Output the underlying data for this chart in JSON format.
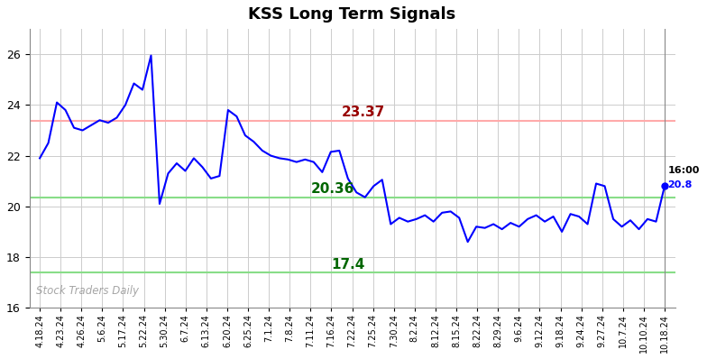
{
  "title": "KSS Long Term Signals",
  "x_labels": [
    "4.18.24",
    "4.23.24",
    "4.26.24",
    "5.6.24",
    "5.17.24",
    "5.22.24",
    "5.30.24",
    "6.7.24",
    "6.13.24",
    "6.20.24",
    "6.25.24",
    "7.1.24",
    "7.8.24",
    "7.11.24",
    "7.16.24",
    "7.22.24",
    "7.25.24",
    "7.30.24",
    "8.2.24",
    "8.12.24",
    "8.15.24",
    "8.22.24",
    "8.29.24",
    "9.6.24",
    "9.12.24",
    "9.18.24",
    "9.24.24",
    "9.27.24",
    "10.7.24",
    "10.10.24",
    "10.18.24"
  ],
  "y_values": [
    21.9,
    22.5,
    24.1,
    23.8,
    23.1,
    23.0,
    23.2,
    23.4,
    23.3,
    23.5,
    24.0,
    24.85,
    24.6,
    25.95,
    20.1,
    21.3,
    21.7,
    21.4,
    21.9,
    21.55,
    21.1,
    21.2,
    23.8,
    23.55,
    22.8,
    22.55,
    22.2,
    22.0,
    21.9,
    21.85,
    21.75,
    21.85,
    21.75,
    21.35,
    22.15,
    22.2,
    21.1,
    20.55,
    20.36,
    20.8,
    21.05,
    19.3,
    19.55,
    19.4,
    19.5,
    19.65,
    19.4,
    19.75,
    19.8,
    19.55,
    18.6,
    19.2,
    19.15,
    19.3,
    19.1,
    19.35,
    19.2,
    19.5,
    19.65,
    19.4,
    19.6,
    19.0,
    19.7,
    19.6,
    19.3,
    20.9,
    20.8,
    19.5,
    19.2,
    19.45,
    19.1,
    19.5,
    19.4,
    20.8
  ],
  "line_color": "#0000ff",
  "hline_red": 23.37,
  "hline_green_upper": 20.36,
  "hline_green_lower": 17.4,
  "hline_red_color": "#ffaaaa",
  "hline_green_color": "#88dd88",
  "label_red_color": "#990000",
  "label_green_color": "#006600",
  "ylim_min": 16,
  "ylim_max": 27,
  "yticks": [
    16,
    18,
    20,
    22,
    24,
    26
  ],
  "watermark": "Stock Traders Daily",
  "last_label_time": "16:00",
  "last_label_value": "20.8",
  "annotation_red": "23.37",
  "annotation_green_upper": "20.36",
  "annotation_green_lower": "17.4",
  "background_color": "#ffffff",
  "grid_color": "#cccccc"
}
